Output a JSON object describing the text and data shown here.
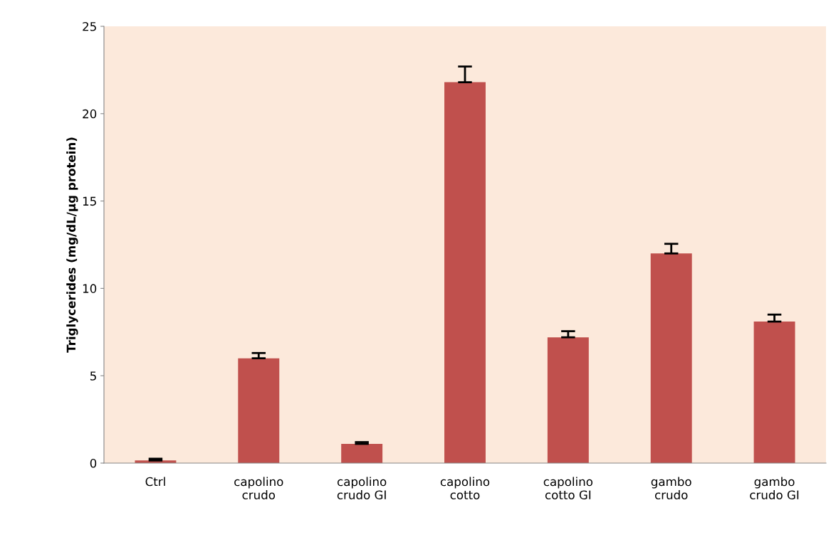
{
  "chart_data": {
    "type": "bar",
    "ylabel": "Triglycerides (mg/dL/µg protein)",
    "categories": [
      "Ctrl",
      "capolino\ncrudo",
      "capolino\ncrudo GI",
      "capolino\ncotto",
      "capolino\ncotto GI",
      "gambo\ncrudo",
      "gambo\ncrudo GI"
    ],
    "values": [
      0.15,
      6.0,
      1.1,
      21.8,
      7.2,
      12.0,
      8.1
    ],
    "errors": [
      0.1,
      0.3,
      0.1,
      0.9,
      0.35,
      0.55,
      0.4
    ],
    "color": "#c0504d",
    "ylim": [
      0,
      25
    ],
    "yticks": [
      0,
      5,
      10,
      15,
      20,
      25
    ],
    "grid": false,
    "legend": false
  }
}
